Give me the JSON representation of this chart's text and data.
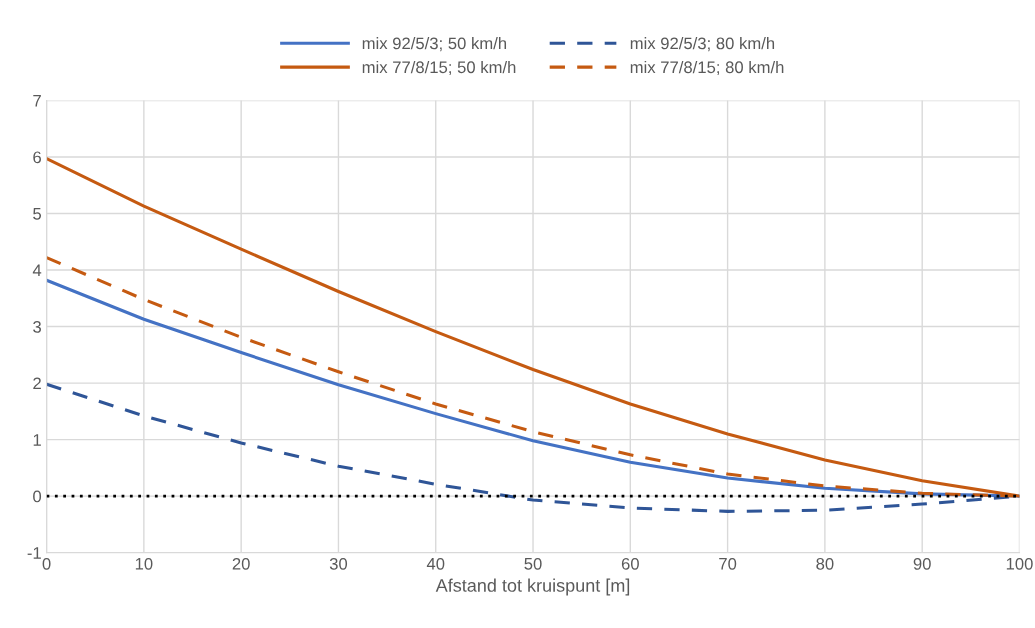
{
  "chart_data": {
    "type": "line",
    "xlabel": "Afstand tot kruispunt [m]",
    "x": [
      0,
      10,
      20,
      30,
      40,
      50,
      60,
      70,
      80,
      90,
      100
    ],
    "series": [
      {
        "name": "mix 92/5/3; 50 km/h",
        "color": "#4472c4",
        "line_style": "solid",
        "values": [
          3.82,
          3.13,
          2.54,
          1.97,
          1.46,
          0.98,
          0.6,
          0.32,
          0.14,
          0.04,
          0
        ]
      },
      {
        "name": "mix 77/8/15; 50 km/h",
        "color": "#c55a11",
        "line_style": "solid",
        "values": [
          5.97,
          5.13,
          4.37,
          3.62,
          2.91,
          2.24,
          1.63,
          1.1,
          0.64,
          0.27,
          0
        ]
      },
      {
        "name": "mix 92/5/3; 80 km/h",
        "color": "#2f5597",
        "line_style": "dashed",
        "values": [
          1.98,
          1.42,
          0.94,
          0.53,
          0.21,
          -0.07,
          -0.21,
          -0.27,
          -0.25,
          -0.14,
          0
        ]
      },
      {
        "name": "mix 77/8/15; 80 km/h",
        "color": "#c55a11",
        "line_style": "dashed",
        "values": [
          4.22,
          3.48,
          2.81,
          2.2,
          1.63,
          1.14,
          0.73,
          0.39,
          0.18,
          0.05,
          0
        ]
      }
    ],
    "ref_lines": [
      {
        "axis": "y",
        "value": 0,
        "color": "#000000",
        "line_style": "dotted"
      }
    ],
    "xlim": [
      0,
      100
    ],
    "xticks": [
      0,
      10,
      20,
      30,
      40,
      50,
      60,
      70,
      80,
      90,
      100
    ],
    "ylim": [
      -1,
      7
    ],
    "yticks": [
      -1,
      0,
      1,
      2,
      3,
      4,
      5,
      6,
      7
    ],
    "grid": true,
    "legend": "top",
    "marker": "none"
  }
}
